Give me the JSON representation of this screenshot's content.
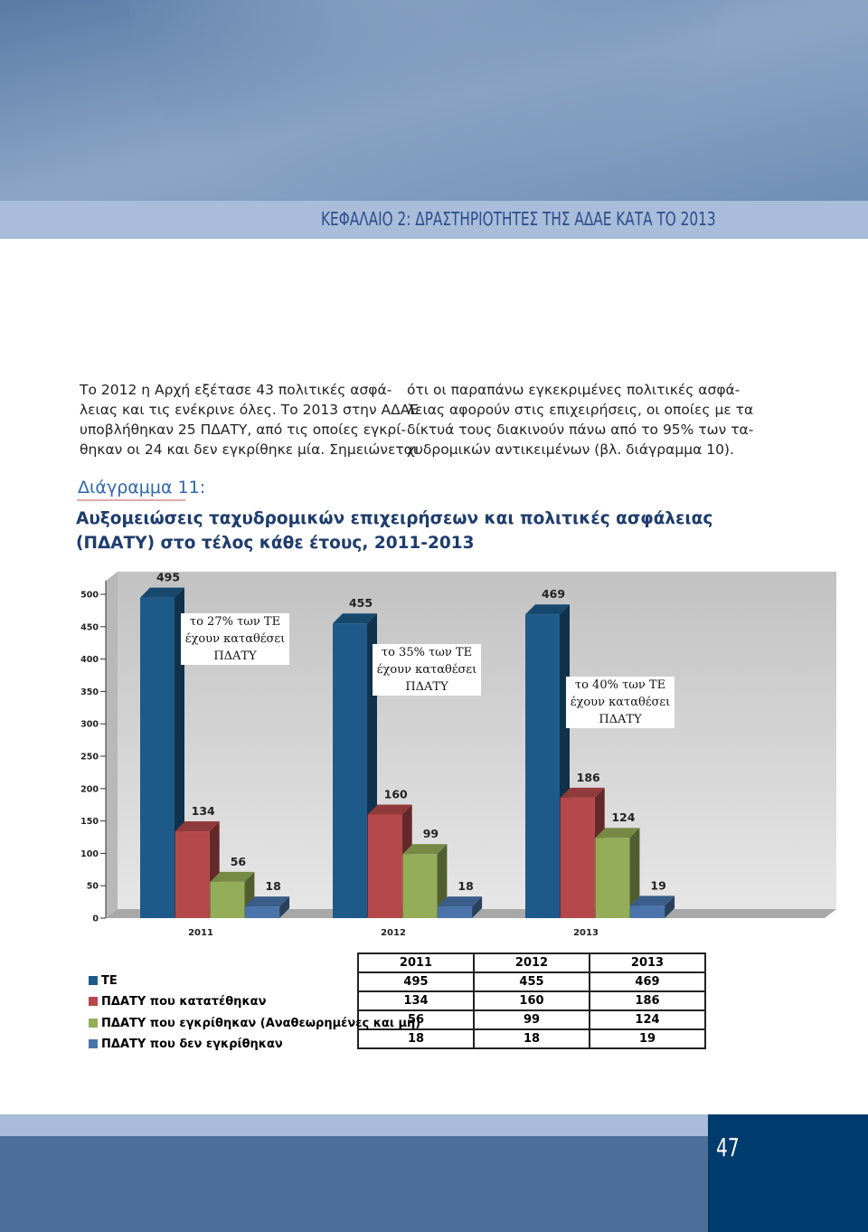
{
  "header": {
    "chapter": "ΚΕΦΑΛΑΙΟ 2:  ΔΡΑΣΤΗΡΙΟΤΗΤΕΣ ΤΗΣ ΑΔΑΕ ΚΑΤΑ ΤΟ 2013"
  },
  "text": {
    "left_lines": [
      "Το 2012 η Αρχή εξέτασε 43 πολιτικές ασφά-",
      "λειας και τις ενέκρινε όλες. Το 2013 στην ΑΔΑΕ",
      "υποβλήθηκαν 25 ΠΔΑΤΥ, από τις οποίες εγκρί-",
      "θηκαν οι 24 και δεν εγκρίθηκε μία. Σημειώνεται"
    ],
    "right_lines": [
      "ότι οι παραπάνω εγκεκριμένες πολιτικές ασφά-",
      "λειας αφορούν στις επιχειρήσεις, οι οποίες με τα",
      "δίκτυά τους διακινούν πάνω από το 95% των τα-",
      "χυδρομικών αντικειμένων (βλ. διάγραμμα 10)."
    ]
  },
  "chart_data": {
    "type": "bar3d",
    "figure_label": "Διάγραμμα 11:",
    "title": "Αυξομειώσεις ταχυδρομικών επιχειρήσεων και πολιτικές ασφάλειας (ΠΔΑΤΥ) στο τέλος κάθε έτους, 2011-2013",
    "categories": [
      "2011",
      "2012",
      "2013"
    ],
    "series": [
      {
        "name": "ΤΕ",
        "color": "#1d5a8a",
        "values": [
          495,
          455,
          469
        ]
      },
      {
        "name": "ΠΔΑΤΥ που κατατέθηκαν",
        "color": "#b5484a",
        "values": [
          134,
          160,
          186
        ]
      },
      {
        "name": "ΠΔΑΤΥ που εγκρίθηκαν (Αναθεωρημένες και μη)",
        "color": "#94ad58",
        "values": [
          56,
          99,
          124
        ]
      },
      {
        "name": "ΠΔΑΤΥ που δεν εγκρίθηκαν",
        "color": "#4a74ab",
        "values": [
          18,
          18,
          19
        ]
      }
    ],
    "annotations": [
      "το 27% των ΤΕ έχουν καταθέσει ΠΔΑΤΥ",
      "το 35% των ΤΕ έχουν καταθέσει ΠΔΑΤΥ",
      "το 40% των ΤΕ έχουν καταθέσει ΠΔΑΤΥ"
    ],
    "ylim": [
      0,
      500
    ],
    "yticks": [
      0,
      50,
      100,
      150,
      200,
      250,
      300,
      350,
      400,
      450,
      500
    ]
  },
  "page_number": "47"
}
